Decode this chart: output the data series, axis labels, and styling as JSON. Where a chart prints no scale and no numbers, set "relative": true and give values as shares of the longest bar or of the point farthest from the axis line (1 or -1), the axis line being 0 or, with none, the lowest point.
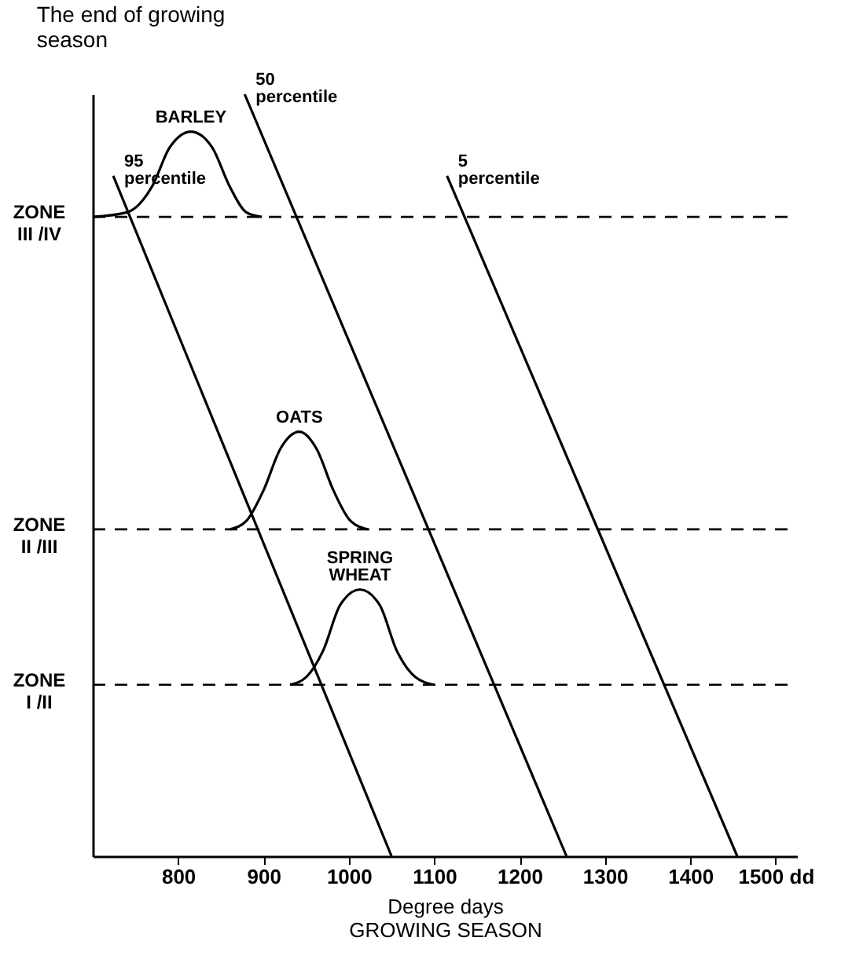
{
  "chart_data": {
    "type": "line",
    "relative": true,
    "title": "The end of growing season",
    "xlabel": "Degree days",
    "xlim": [
      700,
      1525
    ],
    "xticks": [
      800,
      900,
      1000,
      1100,
      1200,
      1300,
      1400,
      {
        "value": 1500,
        "label": "1500 dd"
      }
    ],
    "grid": false,
    "series": [
      {
        "name": "95 percentile",
        "color": "#000000",
        "x": [
          724,
          1050
        ],
        "values": [
          0.893,
          0
        ]
      },
      {
        "name": "50 percentile",
        "color": "#000000",
        "x": [
          878,
          1255
        ],
        "values": [
          1.0,
          0
        ]
      },
      {
        "name": "5 percentile",
        "color": "#000000",
        "x": [
          1115,
          1455
        ],
        "values": [
          0.893,
          0
        ]
      },
      {
        "name": "BARLEY",
        "color": "#000000",
        "x": [
          700,
          740,
          770,
          790,
          815,
          840,
          860,
          880,
          898
        ],
        "values": [
          0.839,
          0.845,
          0.88,
          0.93,
          0.951,
          0.93,
          0.88,
          0.845,
          0.839
        ]
      },
      {
        "name": "OATS",
        "color": "#000000",
        "x": [
          861,
          880,
          900,
          920,
          942,
          962,
          982,
          1002,
          1022
        ],
        "values": [
          0.429,
          0.44,
          0.48,
          0.535,
          0.557,
          0.535,
          0.48,
          0.44,
          0.429
        ]
      },
      {
        "name": "SPRING WHEAT",
        "color": "#000000",
        "x": [
          931,
          950,
          970,
          990,
          1013,
          1036,
          1056,
          1078,
          1100
        ],
        "values": [
          0.225,
          0.235,
          0.27,
          0.33,
          0.35,
          0.33,
          0.27,
          0.235,
          0.225
        ]
      }
    ],
    "ref_lines": [
      {
        "axis": "y",
        "value": 0.839,
        "label": "ZONE III /IV",
        "line_style": "dashed",
        "color": "#000000"
      },
      {
        "axis": "y",
        "value": 0.429,
        "label": "ZONE II /III",
        "line_style": "dashed",
        "color": "#000000"
      },
      {
        "axis": "y",
        "value": 0.225,
        "label": "ZONE I /II",
        "line_style": "dashed",
        "color": "#000000"
      }
    ],
    "annotations": [
      "GROWING SEASON"
    ]
  }
}
